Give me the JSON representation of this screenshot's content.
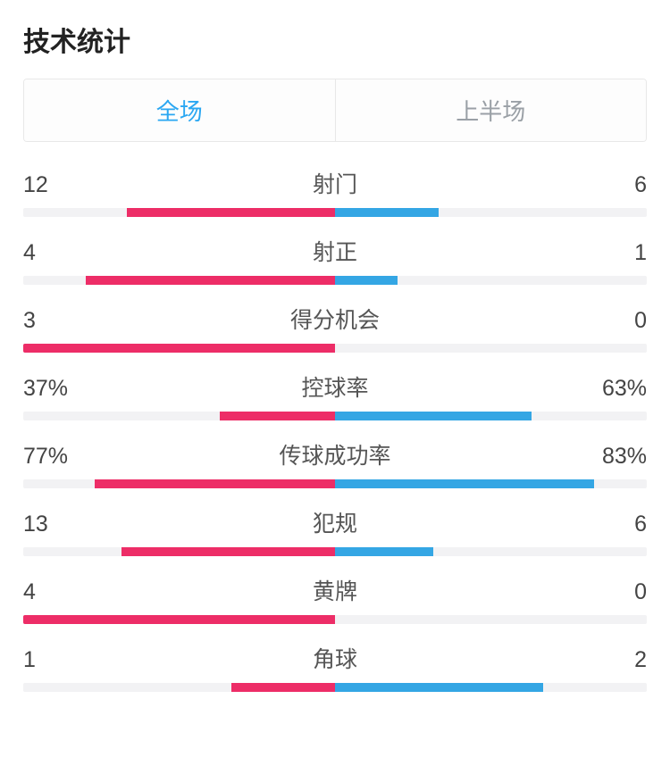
{
  "title": "技术统计",
  "colors": {
    "left": "#ed2d67",
    "right": "#34a6e4",
    "track": "#f2f2f4",
    "active_tab": "#2aa7f2",
    "inactive_tab": "#9aa0a6"
  },
  "tabs": [
    {
      "label": "全场",
      "active": true
    },
    {
      "label": "上半场",
      "active": false
    }
  ],
  "stats": [
    {
      "name": "射门",
      "left_label": "12",
      "right_label": "6",
      "left_pct": 66.7,
      "right_pct": 33.3
    },
    {
      "name": "射正",
      "left_label": "4",
      "right_label": "1",
      "left_pct": 80.0,
      "right_pct": 20.0
    },
    {
      "name": "得分机会",
      "left_label": "3",
      "right_label": "0",
      "left_pct": 100.0,
      "right_pct": 0.0
    },
    {
      "name": "控球率",
      "left_label": "37%",
      "right_label": "63%",
      "left_pct": 37.0,
      "right_pct": 63.0
    },
    {
      "name": "传球成功率",
      "left_label": "77%",
      "right_label": "83%",
      "left_pct": 77.0,
      "right_pct": 83.0
    },
    {
      "name": "犯规",
      "left_label": "13",
      "right_label": "6",
      "left_pct": 68.4,
      "right_pct": 31.6
    },
    {
      "name": "黄牌",
      "left_label": "4",
      "right_label": "0",
      "left_pct": 100.0,
      "right_pct": 0.0
    },
    {
      "name": "角球",
      "left_label": "1",
      "right_label": "2",
      "left_pct": 33.3,
      "right_pct": 66.7
    }
  ]
}
